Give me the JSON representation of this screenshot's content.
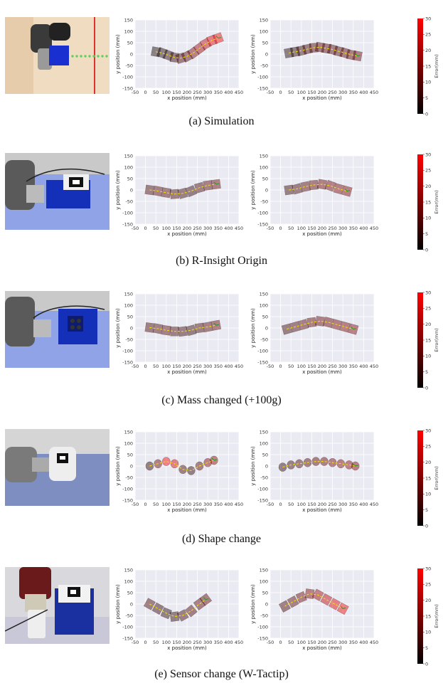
{
  "colors": {
    "grid_bg": "#eaeaf2",
    "grid_line": "#ffffff",
    "path": "#f5e400",
    "arrow": "#1a9e1a",
    "accent": "#ff0000"
  },
  "colorbar": {
    "label": "Error(mm)",
    "ticks": [
      "30",
      "25",
      "20",
      "15",
      "10",
      "5",
      "0"
    ],
    "range": [
      0,
      30
    ]
  },
  "axes_template": {
    "xlabel": "x position (mm)",
    "ylabel": "y position (mm)",
    "xticks": [
      "-50",
      "0",
      "50",
      "100",
      "150",
      "200",
      "250",
      "300",
      "350",
      "400",
      "450"
    ],
    "yticks": [
      "150",
      "100",
      "50",
      "0",
      "-50",
      "-100",
      "-150"
    ],
    "xlim": [
      -50,
      450
    ],
    "ylim": [
      -150,
      150
    ],
    "grid": true
  },
  "rows": [
    {
      "caption": "(a) Simulation",
      "photo": "simulation-scene-photo",
      "panels": [
        {
          "shape": "rect",
          "size": 40,
          "x": [
            50,
            80,
            110,
            140,
            170,
            200,
            230,
            260,
            290,
            320,
            350
          ],
          "y": [
            10,
            5,
            -5,
            -15,
            -18,
            -10,
            5,
            25,
            45,
            60,
            70
          ],
          "error": [
            2,
            3,
            4,
            6,
            8,
            10,
            14,
            18,
            22,
            26,
            29
          ]
        },
        {
          "shape": "rect",
          "size": 40,
          "x": [
            40,
            70,
            100,
            130,
            160,
            190,
            220,
            250,
            280,
            310,
            340,
            370
          ],
          "y": [
            5,
            10,
            15,
            22,
            28,
            30,
            25,
            20,
            12,
            5,
            -3,
            -8
          ],
          "error": [
            3,
            5,
            6,
            8,
            9,
            10,
            10,
            9,
            9,
            10,
            11,
            12
          ]
        }
      ]
    },
    {
      "caption": "(b) R-Insight Origin",
      "photo": "r-insight-origin-photo",
      "panels": [
        {
          "shape": "rect",
          "size": 40,
          "x": [
            20,
            60,
            100,
            140,
            180,
            220,
            260,
            300,
            340
          ],
          "y": [
            0,
            -5,
            -12,
            -18,
            -15,
            -5,
            10,
            20,
            25
          ],
          "error": [
            8,
            10,
            9,
            8,
            7,
            6,
            8,
            10,
            12
          ]
        },
        {
          "shape": "rect",
          "size": 40,
          "x": [
            40,
            80,
            120,
            160,
            200,
            240,
            280,
            320
          ],
          "y": [
            0,
            5,
            15,
            22,
            25,
            18,
            5,
            -5
          ],
          "error": [
            6,
            8,
            10,
            11,
            12,
            13,
            14,
            15
          ]
        }
      ]
    },
    {
      "caption": "(c) Mass changed (+100g)",
      "photo": "mass-changed-photo",
      "panels": [
        {
          "shape": "rect",
          "size": 40,
          "x": [
            20,
            60,
            100,
            140,
            180,
            220,
            260,
            300,
            340
          ],
          "y": [
            2,
            -3,
            -10,
            -15,
            -15,
            -10,
            0,
            5,
            12
          ],
          "error": [
            8,
            9,
            10,
            8,
            7,
            6,
            8,
            10,
            12
          ]
        },
        {
          "shape": "rect",
          "size": 40,
          "x": [
            30,
            70,
            110,
            150,
            190,
            230,
            270,
            310,
            350
          ],
          "y": [
            -5,
            5,
            15,
            25,
            30,
            25,
            15,
            5,
            -5
          ],
          "error": [
            7,
            9,
            10,
            11,
            12,
            12,
            13,
            14,
            15
          ]
        }
      ]
    },
    {
      "caption": "(d) Shape change",
      "photo": "shape-change-photo",
      "panels": [
        {
          "shape": "circle",
          "size": 38,
          "x": [
            20,
            60,
            100,
            140,
            180,
            220,
            260,
            300,
            330
          ],
          "y": [
            0,
            10,
            20,
            10,
            -15,
            -20,
            0,
            15,
            25
          ],
          "error": [
            5,
            12,
            28,
            25,
            8,
            6,
            10,
            15,
            18
          ]
        },
        {
          "shape": "circle",
          "size": 38,
          "x": [
            10,
            50,
            90,
            130,
            170,
            210,
            250,
            290,
            330,
            360
          ],
          "y": [
            -5,
            5,
            10,
            15,
            20,
            20,
            15,
            10,
            5,
            0
          ],
          "error": [
            5,
            6,
            8,
            10,
            11,
            12,
            13,
            14,
            15,
            16
          ]
        }
      ]
    },
    {
      "caption": "(e) Sensor change (W-Tactip)",
      "photo": "sensor-change-photo",
      "panels": [
        {
          "shape": "rect",
          "size": 40,
          "x": [
            20,
            60,
            100,
            140,
            180,
            220,
            260,
            290
          ],
          "y": [
            0,
            -20,
            -40,
            -55,
            -50,
            -30,
            0,
            20
          ],
          "error": [
            8,
            6,
            4,
            5,
            7,
            9,
            10,
            11
          ]
        },
        {
          "shape": "rect",
          "size": 40,
          "x": [
            20,
            60,
            100,
            140,
            180,
            220,
            260,
            300
          ],
          "y": [
            -10,
            10,
            30,
            45,
            40,
            20,
            0,
            -20
          ],
          "error": [
            8,
            10,
            12,
            14,
            18,
            22,
            26,
            28
          ]
        }
      ]
    }
  ]
}
